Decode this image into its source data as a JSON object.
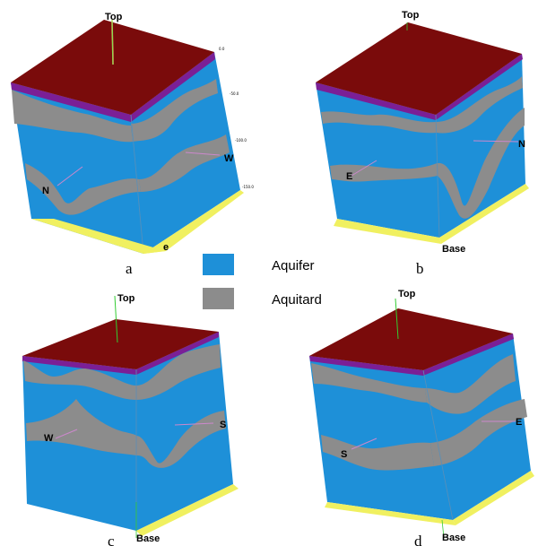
{
  "colors": {
    "top_face": "#7a0b0b",
    "aquifer": "#1e90d8",
    "aquitard": "#8c8c8c",
    "purple_layer": "#7b1f96",
    "base_grid": "#f0f060",
    "axis_green": "#33cc33"
  },
  "legend": {
    "aquifer_label": "Aquifer",
    "aquitard_label": "Aquitard"
  },
  "panels": [
    {
      "caption": "a",
      "top_label": "Top",
      "left_label": "N",
      "right_label": "W",
      "base_label": "e"
    },
    {
      "caption": "b",
      "top_label": "Top",
      "left_label": "E",
      "right_label": "N",
      "base_label": "Base"
    },
    {
      "caption": "c",
      "top_label": "Top",
      "left_label": "W",
      "right_label": "S",
      "base_label": "Base"
    },
    {
      "caption": "d",
      "top_label": "Top",
      "left_label": "S",
      "right_label": "E",
      "base_label": "Base"
    }
  ],
  "axis_ticks_a": [
    "0.0",
    "-50.0",
    "-100.0",
    "-150.0"
  ]
}
